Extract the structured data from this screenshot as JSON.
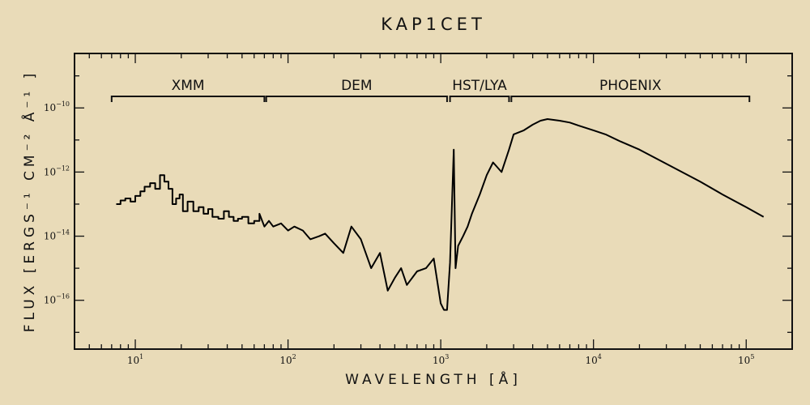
{
  "chart_data": {
    "type": "line",
    "title": "KAP1CET",
    "xlabel": "WAVELENGTH [Å]",
    "ylabel": "FLUX [ERGS⁻¹ CM⁻² Å⁻¹ ]",
    "xscale": "log",
    "yscale": "log",
    "xlim": [
      4,
      200000
    ],
    "ylim": [
      3e-18,
      5e-09
    ],
    "xticks": [
      {
        "value": 10,
        "base": "10",
        "exp": "1"
      },
      {
        "value": 100,
        "base": "10",
        "exp": "2"
      },
      {
        "value": 1000,
        "base": "10",
        "exp": "3"
      },
      {
        "value": 10000,
        "base": "10",
        "exp": "4"
      },
      {
        "value": 100000,
        "base": "10",
        "exp": "5"
      }
    ],
    "yticks": [
      {
        "value": 1e-16,
        "base": "10",
        "exp": "−16"
      },
      {
        "value": 1e-14,
        "base": "10",
        "exp": "−14"
      },
      {
        "value": 1e-12,
        "base": "10",
        "exp": "−12"
      },
      {
        "value": 1e-10,
        "base": "10",
        "exp": "−10"
      }
    ],
    "regions": [
      {
        "label": "XMM",
        "x_start": 7,
        "x_end": 70
      },
      {
        "label": "DEM",
        "x_start": 72,
        "x_end": 1100
      },
      {
        "label": "HST/LYA",
        "x_start": 1150,
        "x_end": 2800
      },
      {
        "label": "PHOENIX",
        "x_start": 2900,
        "x_end": 105000
      }
    ],
    "series": [
      {
        "x": [
          7.5,
          8,
          8.6,
          9.3,
          10,
          10.8,
          11.5,
          12.5,
          13.5,
          14.5,
          15.5,
          16.5,
          17.5,
          18.5,
          19.5,
          20.5,
          22,
          24,
          26,
          28,
          30,
          32,
          35,
          38,
          41,
          44,
          47,
          50,
          55,
          60,
          65,
          70,
          75,
          80,
          90,
          100,
          110,
          125,
          140,
          160,
          175,
          200,
          230,
          260,
          300,
          350,
          400,
          450,
          500,
          550,
          600,
          700,
          800,
          900,
          1000,
          1050,
          1100,
          1150,
          1216,
          1250,
          1300,
          1400,
          1500,
          1600,
          1800,
          2000,
          2200,
          2500,
          2800,
          3000,
          3500,
          4000,
          4500,
          5000,
          6000,
          7000,
          8000,
          10000,
          12000,
          15000,
          20000,
          30000,
          50000,
          70000,
          100000,
          130000
        ],
        "y": [
          1e-13,
          1.3e-13,
          1.5e-13,
          1.2e-13,
          1.8e-13,
          2.5e-13,
          3.5e-13,
          4.5e-13,
          3e-13,
          8e-13,
          5e-13,
          3e-13,
          1e-13,
          1.5e-13,
          2e-13,
          6e-14,
          1.2e-13,
          6e-14,
          8e-14,
          5e-14,
          7e-14,
          4e-14,
          3.5e-14,
          6e-14,
          4e-14,
          3e-14,
          3.5e-14,
          4e-14,
          2.5e-14,
          3e-14,
          5e-14,
          2e-14,
          3e-14,
          2e-14,
          2.5e-14,
          1.5e-14,
          2e-14,
          1.5e-14,
          8e-15,
          1e-14,
          1.2e-14,
          6e-15,
          3e-15,
          2e-14,
          8e-15,
          1e-15,
          3e-15,
          2e-16,
          5e-16,
          1e-15,
          3e-16,
          8e-16,
          1e-15,
          2e-15,
          8e-17,
          5e-17,
          5e-17,
          1.5e-15,
          5e-12,
          1e-15,
          5e-15,
          1e-14,
          2e-14,
          5e-14,
          2e-13,
          8e-13,
          2e-12,
          1e-12,
          5e-12,
          1.5e-11,
          2e-11,
          3e-11,
          4e-11,
          4.5e-11,
          4e-11,
          3.5e-11,
          2.8e-11,
          2e-11,
          1.5e-11,
          9e-12,
          5e-12,
          1.8e-12,
          5e-13,
          2e-13,
          8e-14,
          4e-14
        ]
      }
    ],
    "grid": false,
    "legend": "none"
  }
}
